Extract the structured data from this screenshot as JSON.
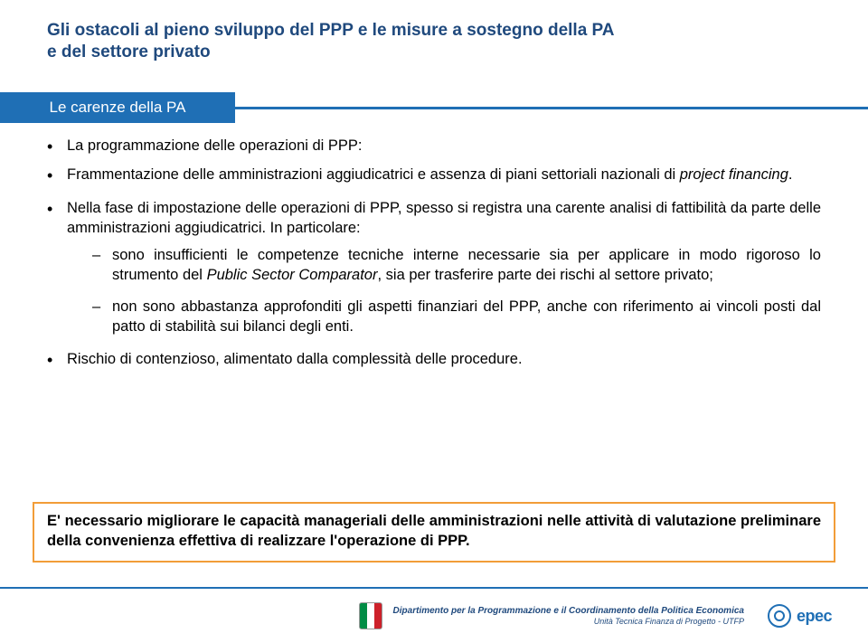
{
  "colors": {
    "title": "#1f497d",
    "band": "#1f6fb5",
    "callout_border": "#f29d38",
    "text": "#000000",
    "background": "#ffffff"
  },
  "typography": {
    "title_fontsize": 19,
    "body_fontsize": 16.5,
    "footer_fontsize": 10,
    "title_weight": 700
  },
  "title": {
    "line1": "Gli ostacoli al pieno sviluppo del PPP e le misure a sostegno della PA",
    "line2": "e del settore privato"
  },
  "band_label": "Le carenze della PA",
  "bullets": {
    "heading": "La programmazione delle operazioni di PPP:",
    "b1_pre": "Frammentazione delle amministrazioni aggiudicatrici e assenza di piani settoriali nazionali di ",
    "b1_italic": "project financing",
    "b1_post": ".",
    "b2": "Nella fase di impostazione delle operazioni di PPP, spesso si registra una carente analisi di fattibilità da parte delle amministrazioni aggiudicatrici. In particolare:",
    "sub1_pre": "sono insufficienti le competenze tecniche interne necessarie sia per applicare in modo rigoroso lo strumento del ",
    "sub1_italic": "Public Sector Comparator",
    "sub1_post": ", sia per trasferire parte dei rischi al settore privato;",
    "sub2": "non sono abbastanza approfonditi gli aspetti finanziari del PPP, anche con riferimento ai vincoli posti dal patto di stabilità sui bilanci degli enti.",
    "b3": "Rischio di contenzioso, alimentato dalla complessità delle procedure."
  },
  "callout": {
    "bold_lead": "E' necessario migliorare le capacità manageriali delle amministrazioni nelle attività di valutazione preliminare della convenienza effettiva di realizzare l'operazione di PPP."
  },
  "footer": {
    "dept_line1": "Dipartimento per la Programmazione e il Coordinamento della Politica Economica",
    "dept_line2": "Unità Tecnica Finanza di Progetto - UTFP",
    "epec": "epec"
  }
}
